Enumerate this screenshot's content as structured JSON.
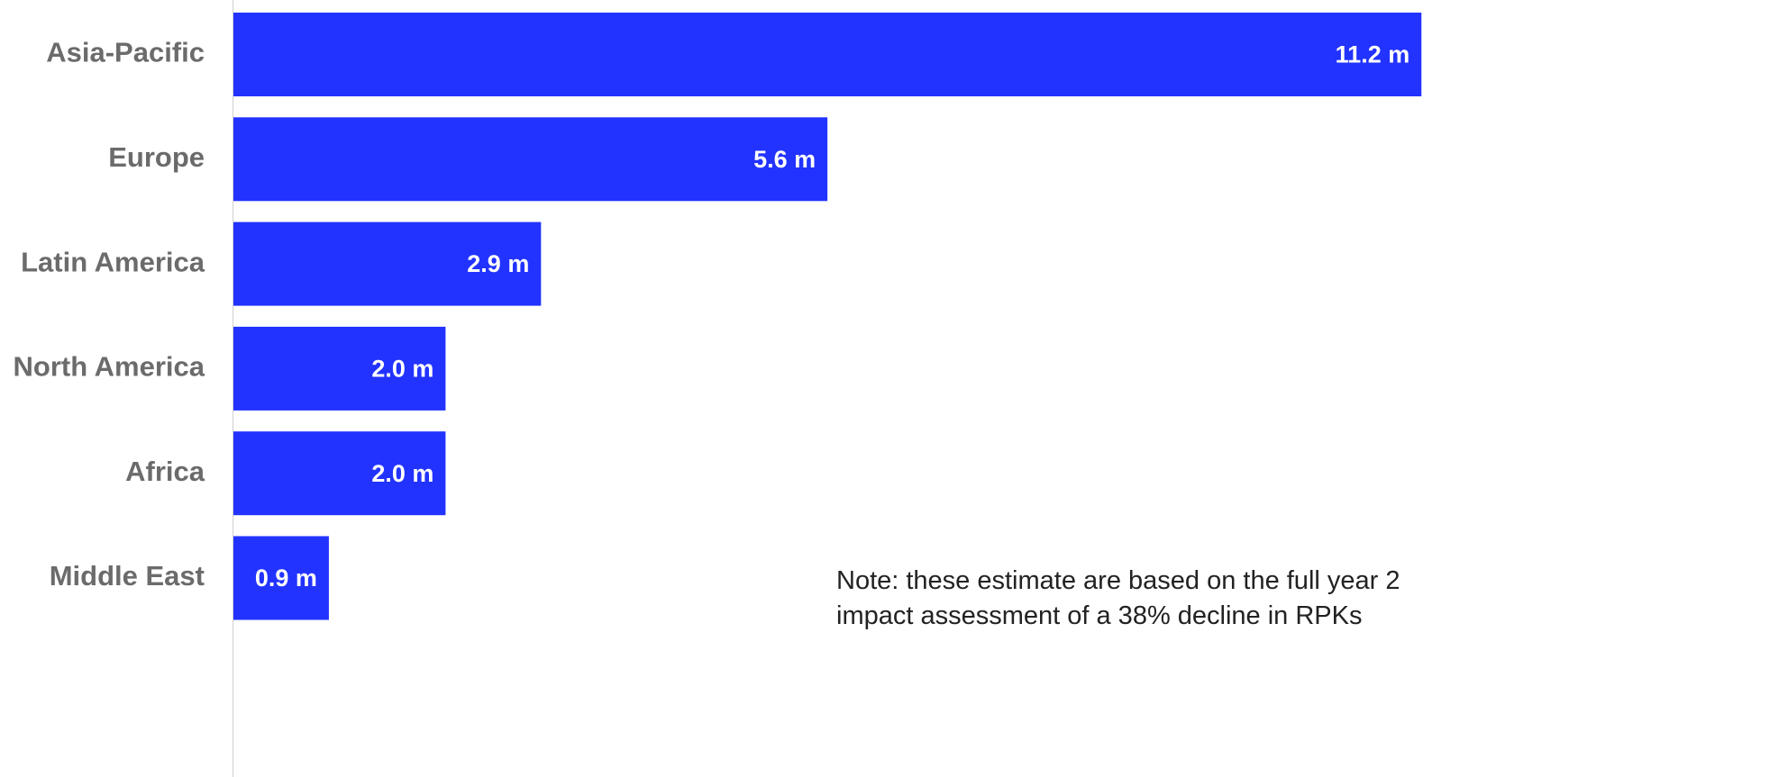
{
  "chart_data": {
    "type": "bar",
    "orientation": "horizontal",
    "categories": [
      "Asia-Pacific",
      "Europe",
      "Latin America",
      "North America",
      "Africa",
      "Middle East"
    ],
    "values": [
      11.2,
      5.6,
      2.9,
      2.0,
      2.0,
      0.9
    ],
    "value_labels": [
      "11.2 m",
      "5.6 m",
      "2.9 m",
      "2.0 m",
      "2.0 m",
      "0.9 m"
    ],
    "xlim": [
      0,
      14
    ],
    "grid": false,
    "legend": "none",
    "bar_color": "#2233ff",
    "note_lines": [
      "Note: these estimate are based on the full year 2",
      "impact assessment of a 38% decline in RPKs"
    ]
  }
}
